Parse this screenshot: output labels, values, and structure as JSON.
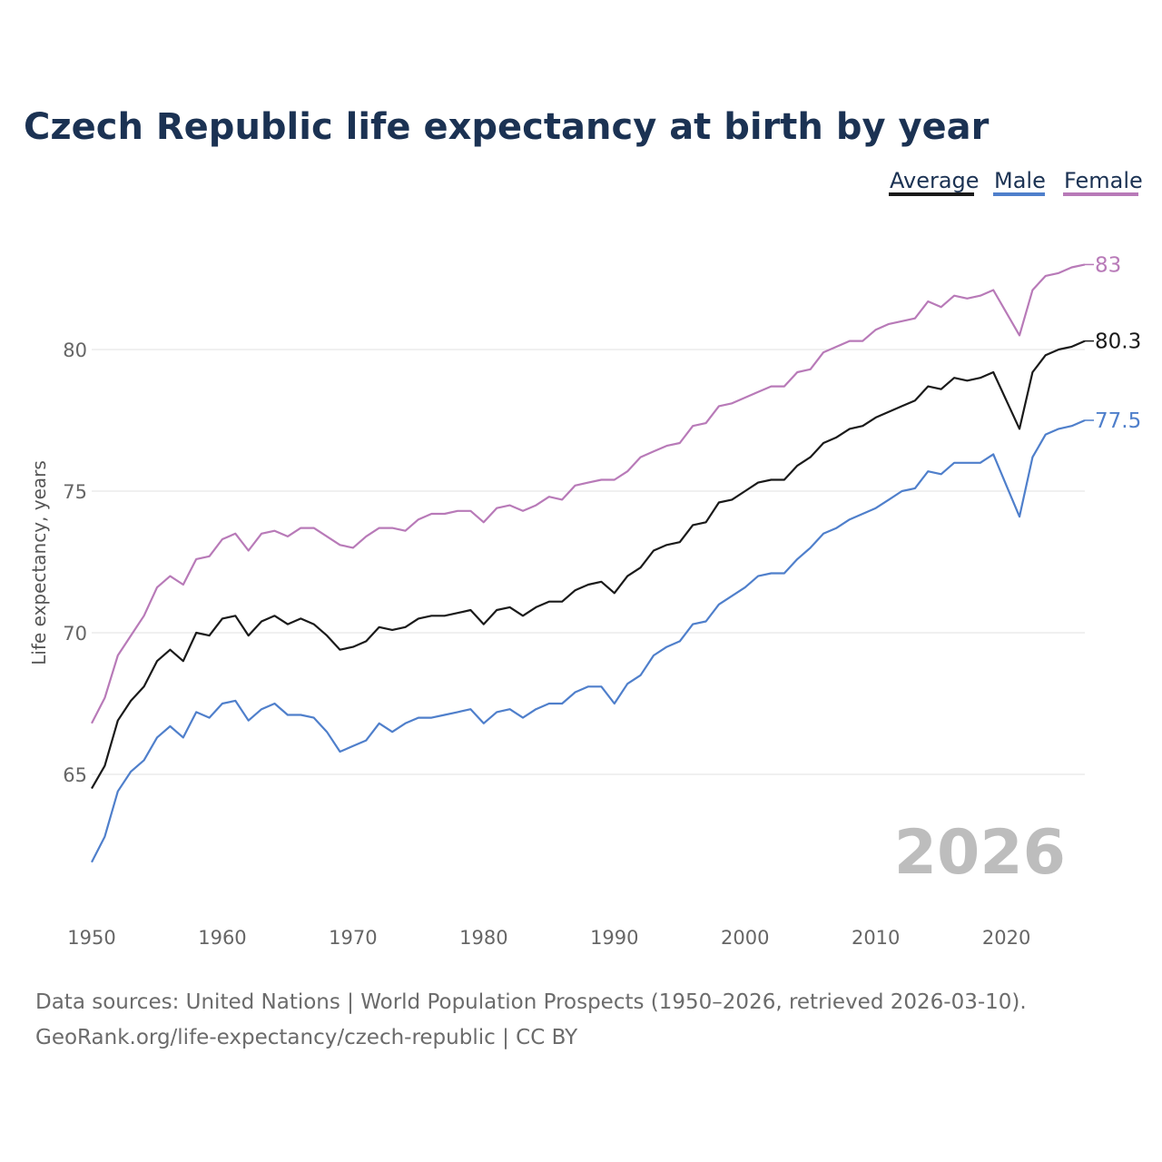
{
  "chart_data": {
    "type": "line",
    "title": "Czech Republic life expectancy at birth by year",
    "xlabel": "",
    "ylabel": "Life expectancy, years",
    "xlim": [
      1950,
      2026
    ],
    "ylim": [
      61.5,
      84
    ],
    "yticks": [
      65,
      70,
      75,
      80
    ],
    "xticks": [
      1950,
      1960,
      1970,
      1980,
      1990,
      2000,
      2010,
      2020
    ],
    "grid": true,
    "legend_placement": "top-right",
    "current_year_label": "2026",
    "x_start": 1950,
    "series": [
      {
        "name": "Average",
        "color": "#1a1a1a",
        "end_label": "80.3",
        "values": [
          64.5,
          65.3,
          66.9,
          67.6,
          68.1,
          69.0,
          69.4,
          69.0,
          70.0,
          69.9,
          70.5,
          70.6,
          69.9,
          70.4,
          70.6,
          70.3,
          70.5,
          70.3,
          69.9,
          69.4,
          69.5,
          69.7,
          70.2,
          70.1,
          70.2,
          70.5,
          70.6,
          70.6,
          70.7,
          70.8,
          70.3,
          70.8,
          70.9,
          70.6,
          70.9,
          71.1,
          71.1,
          71.5,
          71.7,
          71.8,
          71.4,
          72.0,
          72.3,
          72.9,
          73.1,
          73.2,
          73.8,
          73.9,
          74.6,
          74.7,
          75.0,
          75.3,
          75.4,
          75.4,
          75.9,
          76.2,
          76.7,
          76.9,
          77.2,
          77.3,
          77.6,
          77.8,
          78.0,
          78.2,
          78.7,
          78.6,
          79.0,
          78.9,
          79.0,
          79.2,
          78.2,
          77.2,
          79.2,
          79.8,
          80.0,
          80.1,
          80.3
        ]
      },
      {
        "name": "Male",
        "color": "#4f7fcb",
        "end_label": "77.5",
        "values": [
          61.9,
          62.8,
          64.4,
          65.1,
          65.5,
          66.3,
          66.7,
          66.3,
          67.2,
          67.0,
          67.5,
          67.6,
          66.9,
          67.3,
          67.5,
          67.1,
          67.1,
          67.0,
          66.5,
          65.8,
          66.0,
          66.2,
          66.8,
          66.5,
          66.8,
          67.0,
          67.0,
          67.1,
          67.2,
          67.3,
          66.8,
          67.2,
          67.3,
          67.0,
          67.3,
          67.5,
          67.5,
          67.9,
          68.1,
          68.1,
          67.5,
          68.2,
          68.5,
          69.2,
          69.5,
          69.7,
          70.3,
          70.4,
          71.0,
          71.3,
          71.6,
          72.0,
          72.1,
          72.1,
          72.6,
          73.0,
          73.5,
          73.7,
          74.0,
          74.2,
          74.4,
          74.7,
          75.0,
          75.1,
          75.7,
          75.6,
          76.0,
          76.0,
          76.0,
          76.3,
          75.2,
          74.1,
          76.2,
          77.0,
          77.2,
          77.3,
          77.5
        ]
      },
      {
        "name": "Female",
        "color": "#b87ab8",
        "end_label": "83",
        "values": [
          66.8,
          67.7,
          69.2,
          69.9,
          70.6,
          71.6,
          72.0,
          71.7,
          72.6,
          72.7,
          73.3,
          73.5,
          72.9,
          73.5,
          73.6,
          73.4,
          73.7,
          73.7,
          73.4,
          73.1,
          73.0,
          73.4,
          73.7,
          73.7,
          73.6,
          74.0,
          74.2,
          74.2,
          74.3,
          74.3,
          73.9,
          74.4,
          74.5,
          74.3,
          74.5,
          74.8,
          74.7,
          75.2,
          75.3,
          75.4,
          75.4,
          75.7,
          76.2,
          76.4,
          76.6,
          76.7,
          77.3,
          77.4,
          78.0,
          78.1,
          78.3,
          78.5,
          78.7,
          78.7,
          79.2,
          79.3,
          79.9,
          80.1,
          80.3,
          80.3,
          80.7,
          80.9,
          81.0,
          81.1,
          81.7,
          81.5,
          81.9,
          81.8,
          81.9,
          82.1,
          81.3,
          80.5,
          82.1,
          82.6,
          82.7,
          82.9,
          83.0
        ]
      }
    ]
  },
  "footer": {
    "line1": "Data sources: United Nations | World Population Prospects (1950–2026, retrieved 2026-03-10).",
    "line2": "GeoRank.org/life-expectancy/czech-republic | CC BY"
  }
}
